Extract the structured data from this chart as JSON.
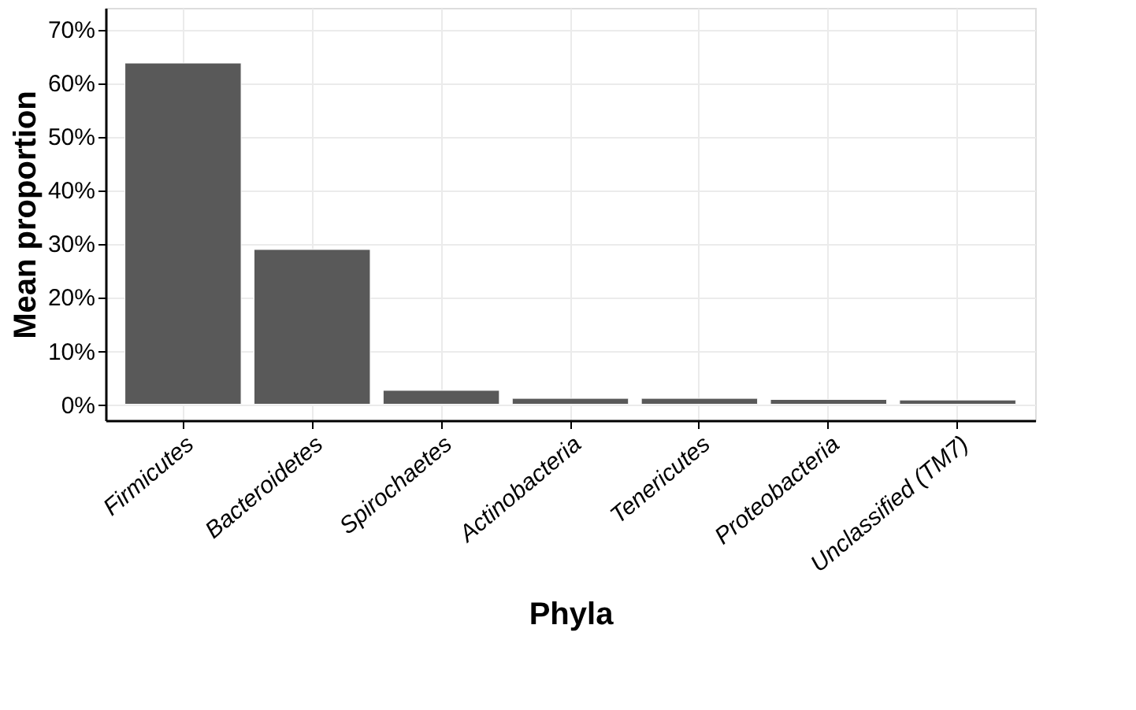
{
  "chart_data": {
    "type": "bar",
    "xlabel": "Phyla",
    "ylabel": "Mean proportion",
    "categories": [
      "Firmicutes",
      "Bacteroidetes",
      "Spirochaetes",
      "Actinobacteria",
      "Tenericutes",
      "Proteobacteria",
      "Unclassified (TM7)"
    ],
    "values": [
      63.7,
      28.9,
      2.6,
      1.1,
      1.1,
      0.9,
      0.8
    ],
    "color": "#595959",
    "ylim": [
      -3,
      74
    ],
    "yticks": [
      {
        "value": 0,
        "label": "0%"
      },
      {
        "value": 10,
        "label": "10%"
      },
      {
        "value": 20,
        "label": "20%"
      },
      {
        "value": 30,
        "label": "30%"
      },
      {
        "value": 40,
        "label": "40%"
      },
      {
        "value": 50,
        "label": "50%"
      },
      {
        "value": 60,
        "label": "60%"
      },
      {
        "value": 70,
        "label": "70%"
      }
    ],
    "grid": true
  }
}
